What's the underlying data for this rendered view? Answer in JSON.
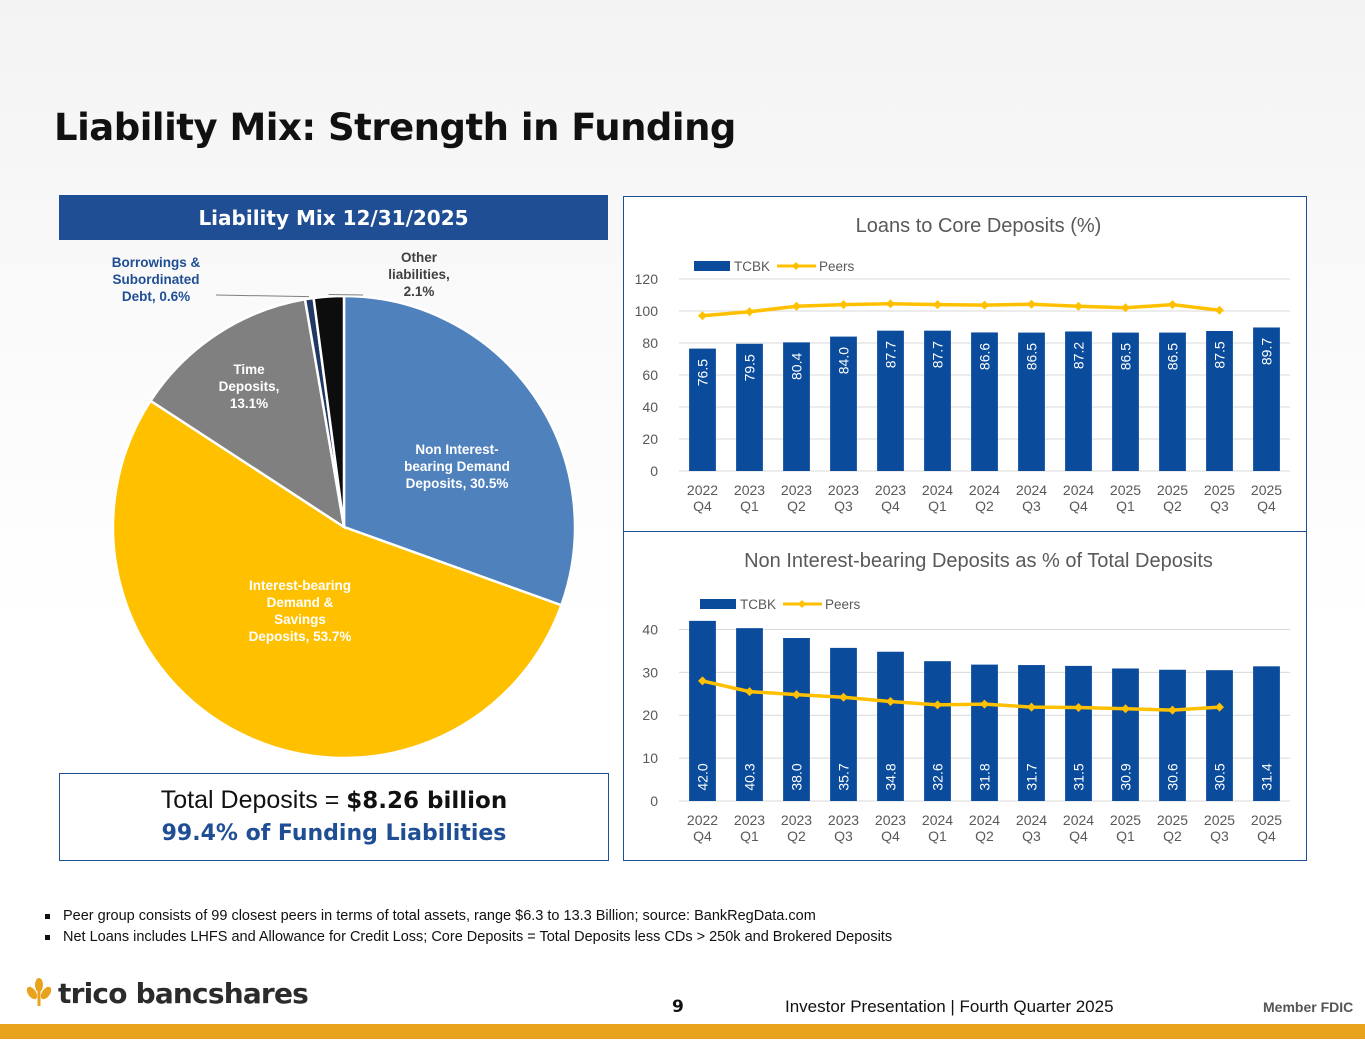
{
  "page": {
    "title": "Liability Mix: Strength in Funding",
    "pie_header": "Liability Mix 12/31/2025",
    "deposits_prefix": "Total Deposits = ",
    "deposits_value": "$8.26 billion",
    "funding_share": "99.4% of Funding Liabilities",
    "footnotes": [
      "Peer group consists of 99 closest peers in terms of total assets, range $6.3 to 13.3 Billion; source: BankRegData.com",
      "Net Loans includes LHFS and Allowance for Credit Loss; Core Deposits = Total Deposits less CDs > 250k and Brokered Deposits"
    ],
    "footer": {
      "logo_text": "trico bancshares",
      "page_number": "9",
      "presentation_label": "Investor Presentation  |  Fourth Quarter 2025",
      "member_label": "Member FDIC"
    },
    "colors": {
      "navy": "#1f4e95",
      "bar_blue": "#0b4b9c",
      "peers_gold": "#ffc000",
      "accent_orange": "#e8a21c"
    }
  },
  "chart_data": [
    {
      "type": "pie",
      "title": "",
      "slices": [
        {
          "label": "Non Interest-bearing Demand Deposits, 30.5%",
          "lines": [
            "Non Interest-",
            "bearing Demand",
            "Deposits, 30.5%"
          ],
          "value": 30.5,
          "color": "#4f81bd",
          "label_color": "#ffffff"
        },
        {
          "label": "Interest-bearing Demand & Savings Deposits, 53.7%",
          "lines": [
            "Interest-bearing",
            "Demand &",
            "Savings",
            "Deposits, 53.7%"
          ],
          "value": 53.7,
          "color": "#ffc000",
          "label_color": "#ffffff"
        },
        {
          "label": "Time Deposits, 13.1%",
          "lines": [
            "Time",
            "Deposits,",
            "13.1%"
          ],
          "value": 13.1,
          "color": "#808080",
          "label_color": "#ffffff"
        },
        {
          "label": "Borrowings & Subordinated Debt, 0.6%",
          "lines": [
            "Borrowings &",
            "Subordinated",
            "Debt, 0.6%"
          ],
          "value": 0.6,
          "color": "#1f3864",
          "label_color": "#1f4e95"
        },
        {
          "label": "Other liabilities, 2.1%",
          "lines": [
            "Other",
            "liabilities,",
            "2.1%"
          ],
          "value": 2.1,
          "color": "#0d0d0d",
          "label_color": "#404040"
        }
      ]
    },
    {
      "type": "bar",
      "title": "Loans to Core Deposits (%)",
      "categories": [
        "2022 Q4",
        "2023 Q1",
        "2023 Q2",
        "2023 Q3",
        "2023 Q4",
        "2024 Q1",
        "2024 Q2",
        "2024 Q3",
        "2024 Q4",
        "2025 Q1",
        "2025 Q2",
        "2025 Q3",
        "2025 Q4"
      ],
      "series": [
        {
          "name": "TCBK",
          "type": "bar",
          "color": "#0b4b9c",
          "values": [
            76.5,
            79.5,
            80.4,
            84.0,
            87.7,
            87.7,
            86.6,
            86.5,
            87.2,
            86.5,
            86.5,
            87.5,
            89.7
          ],
          "labels": [
            "76.5",
            "79.5",
            "80.4",
            "84.0",
            "87.7",
            "87.7",
            "86.6",
            "86.5",
            "87.2",
            "86.5",
            "86.5",
            "87.5",
            "89.7"
          ]
        },
        {
          "name": "Peers",
          "type": "line",
          "color": "#ffc000",
          "values": [
            97,
            99.5,
            103,
            104,
            104.5,
            104,
            103.7,
            104.2,
            103,
            102,
            104,
            100.5,
            null
          ]
        }
      ],
      "ylim": [
        0,
        120
      ],
      "yticks": [
        0,
        20,
        40,
        60,
        80,
        100,
        120
      ],
      "legend": "top-left",
      "grid": true,
      "xlabel": "",
      "ylabel": ""
    },
    {
      "type": "bar",
      "title": "Non Interest-bearing Deposits as % of Total Deposits",
      "categories": [
        "2022 Q4",
        "2023 Q1",
        "2023 Q2",
        "2023 Q3",
        "2023 Q4",
        "2024 Q1",
        "2024 Q2",
        "2024 Q3",
        "2024 Q4",
        "2025 Q1",
        "2025 Q2",
        "2025 Q3",
        "2025 Q4"
      ],
      "series": [
        {
          "name": "TCBK",
          "type": "bar",
          "color": "#0b4b9c",
          "values": [
            42.0,
            40.3,
            38.0,
            35.7,
            34.8,
            32.6,
            31.8,
            31.7,
            31.5,
            30.9,
            30.6,
            30.5,
            31.4
          ],
          "labels": [
            "42.0",
            "40.3",
            "38.0",
            "35.7",
            "34.8",
            "32.6",
            "31.8",
            "31.7",
            "31.5",
            "30.9",
            "30.6",
            "30.5",
            "31.4"
          ]
        },
        {
          "name": "Peers",
          "type": "line",
          "color": "#ffc000",
          "values": [
            28,
            25.5,
            24.8,
            24.2,
            23.2,
            22.4,
            22.6,
            21.9,
            21.8,
            21.5,
            21.2,
            21.9,
            null
          ]
        }
      ],
      "ylim": [
        0,
        45
      ],
      "yticks": [
        0,
        10,
        20,
        30,
        40
      ],
      "legend": "top-left",
      "grid": true,
      "xlabel": "",
      "ylabel": ""
    }
  ]
}
